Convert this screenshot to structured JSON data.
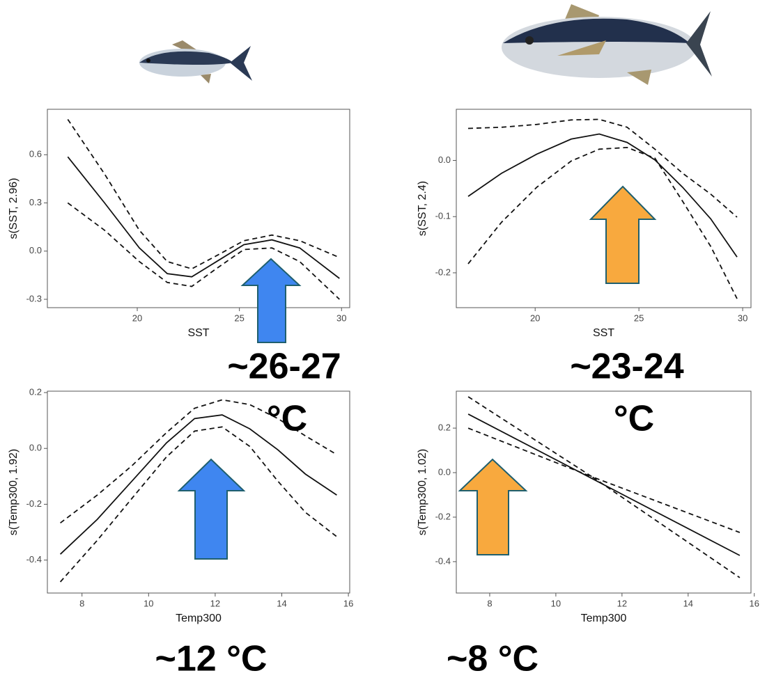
{
  "chart_data": [
    {
      "type": "line",
      "xlabel": "SST",
      "ylabel": "s(SST, 2.96)",
      "x": [
        16.6,
        18.4,
        20.1,
        21.47,
        22.67,
        23.86,
        25.22,
        26.59,
        27.95,
        29.9
      ],
      "series": [
        {
          "style": "solid",
          "color": "#111111",
          "values": [
            0.587,
            0.3,
            0.02,
            -0.14,
            -0.16,
            -0.067,
            0.04,
            0.07,
            0.02,
            -0.17
          ]
        },
        {
          "style": "dashed",
          "color": "#111111",
          "values": [
            0.82,
            0.48,
            0.13,
            -0.065,
            -0.11,
            -0.03,
            0.065,
            0.1,
            0.065,
            -0.04
          ]
        },
        {
          "style": "dashed",
          "color": "#111111",
          "values": [
            0.3,
            0.13,
            -0.065,
            -0.195,
            -0.22,
            -0.11,
            0.01,
            0.02,
            -0.065,
            -0.3
          ]
        }
      ],
      "xlim": [
        15.6,
        30.4
      ],
      "xticks": [
        20,
        25,
        30
      ],
      "ylim": [
        -0.352,
        0.883
      ],
      "yticks": [
        {
          "value": -0.3,
          "label": "-0.3"
        },
        {
          "value": 0,
          "label": "0.0"
        },
        0.3,
        0.6
      ],
      "annotations": [
        "~26-27",
        "°C"
      ]
    },
    {
      "type": "line",
      "xlabel": "SST",
      "ylabel": "s(SST, 2.4)",
      "x": [
        16.77,
        18.38,
        20.07,
        21.74,
        23.09,
        24.43,
        25.77,
        27.11,
        28.46,
        29.73
      ],
      "series": [
        {
          "style": "solid",
          "color": "#111111",
          "values": [
            -0.064,
            -0.023,
            0.011,
            0.038,
            0.047,
            0.032,
            0.001,
            -0.048,
            -0.104,
            -0.172
          ]
        },
        {
          "style": "dashed",
          "color": "#111111",
          "values": [
            0.057,
            0.059,
            0.064,
            0.072,
            0.073,
            0.059,
            0.02,
            -0.023,
            -0.06,
            -0.101
          ]
        },
        {
          "style": "dashed",
          "color": "#111111",
          "values": [
            -0.184,
            -0.11,
            -0.048,
            -0.001,
            0.02,
            0.023,
            0.004,
            -0.073,
            -0.153,
            -0.246
          ]
        }
      ],
      "xlim": [
        16.2,
        30.4
      ],
      "xticks": [
        20,
        25,
        30
      ],
      "ylim": [
        -0.262,
        0.091
      ],
      "yticks": [
        -0.2,
        -0.1,
        {
          "value": 0,
          "label": "0.0"
        }
      ],
      "annotations": [
        "~23-24",
        "°C"
      ]
    },
    {
      "type": "line",
      "xlabel": "Temp300",
      "ylabel": "s(Temp300, 1.92)",
      "x": [
        7.35,
        8.46,
        9.5,
        10.54,
        11.38,
        12.21,
        13.04,
        13.88,
        14.71,
        15.65
      ],
      "series": [
        {
          "style": "solid",
          "color": "#111111",
          "values": [
            -0.379,
            -0.254,
            -0.117,
            0.02,
            0.107,
            0.12,
            0.07,
            -0.005,
            -0.092,
            -0.167
          ]
        },
        {
          "style": "dashed",
          "color": "#111111",
          "values": [
            -0.267,
            -0.167,
            -0.062,
            0.057,
            0.144,
            0.174,
            0.157,
            0.107,
            0.045,
            -0.022
          ]
        },
        {
          "style": "dashed",
          "color": "#111111",
          "values": [
            -0.478,
            -0.329,
            -0.179,
            -0.03,
            0.062,
            0.077,
            0.007,
            -0.117,
            -0.229,
            -0.316
          ]
        }
      ],
      "xlim": [
        6.96,
        16.04
      ],
      "xticks": [
        8,
        10,
        12,
        14,
        16
      ],
      "ylim": [
        -0.518,
        0.205
      ],
      "yticks": [
        -0.4,
        -0.2,
        {
          "value": 0,
          "label": "0.0"
        },
        0.2
      ],
      "annotations": [
        "~12 °C"
      ]
    },
    {
      "type": "line",
      "xlabel": "Temp300",
      "ylabel": "s(Temp300, 1.02)",
      "x": [
        7.35,
        11.1,
        15.56
      ],
      "series": [
        {
          "style": "solid",
          "color": "#111111",
          "values": [
            0.263,
            -0.027,
            -0.372
          ]
        },
        {
          "style": "dashed",
          "color": "#111111",
          "values": [
            0.341,
            -0.019,
            -0.269
          ]
        },
        {
          "style": "dashed",
          "color": "#111111",
          "values": [
            0.2,
            -0.019,
            -0.472
          ]
        }
      ],
      "xlim": [
        6.99,
        15.9
      ],
      "xticks": [
        8,
        10,
        12,
        14,
        16
      ],
      "ylim": [
        -0.541,
        0.366
      ],
      "yticks": [
        -0.4,
        -0.2,
        {
          "value": 0,
          "label": "0.0"
        },
        0.2
      ],
      "annotations": [
        "~8 °C"
      ]
    }
  ]
}
